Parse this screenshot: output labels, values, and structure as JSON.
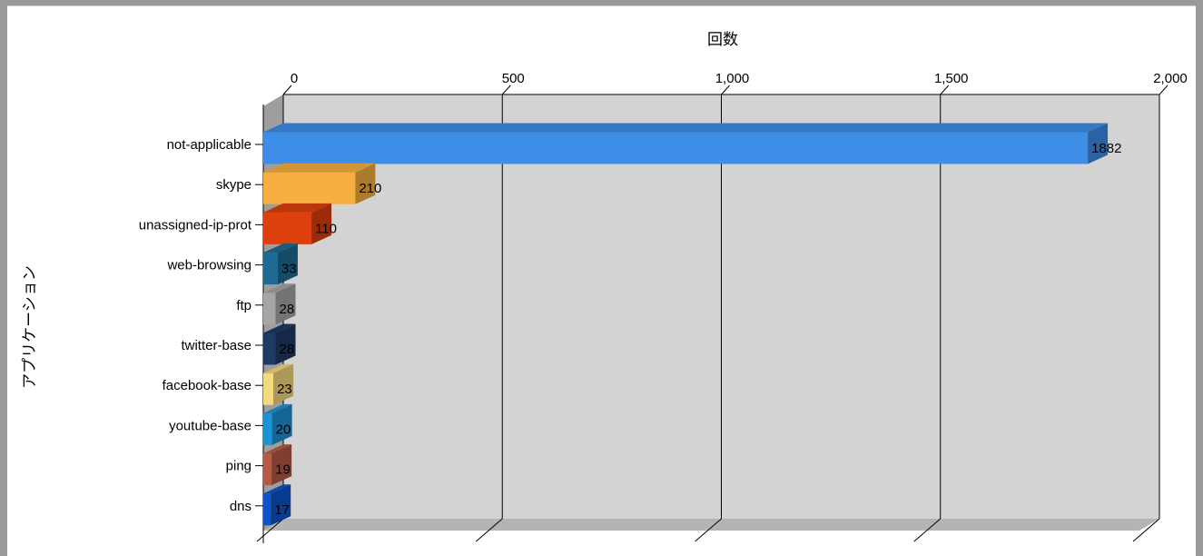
{
  "chart_data": {
    "type": "bar",
    "orientation": "horizontal",
    "style": "3d",
    "xlabel": "回数",
    "ylabel": "アプリケーション",
    "xlim": [
      0,
      2000
    ],
    "x_ticks": [
      0,
      500,
      1000,
      1500,
      2000
    ],
    "x_tick_labels": [
      "0",
      "500",
      "1,000",
      "1,500",
      "2,000"
    ],
    "grid": true,
    "categories": [
      "not-applicable",
      "skype",
      "unassigned-ip-prot",
      "web-browsing",
      "ftp",
      "twitter-base",
      "facebook-base",
      "youtube-base",
      "ping",
      "dns"
    ],
    "values": [
      1882,
      210,
      110,
      33,
      28,
      28,
      23,
      20,
      19,
      17
    ],
    "value_labels": [
      "1882",
      "210",
      "110",
      "33",
      "28",
      "28",
      "23",
      "20",
      "19",
      "17"
    ],
    "colors": [
      "#3e8ee8",
      "#f7b03f",
      "#dd3f0d",
      "#1d6b95",
      "#a6a6a6",
      "#1e3963",
      "#f4da7e",
      "#1c93d3",
      "#b65a45",
      "#0b54c9"
    ]
  }
}
